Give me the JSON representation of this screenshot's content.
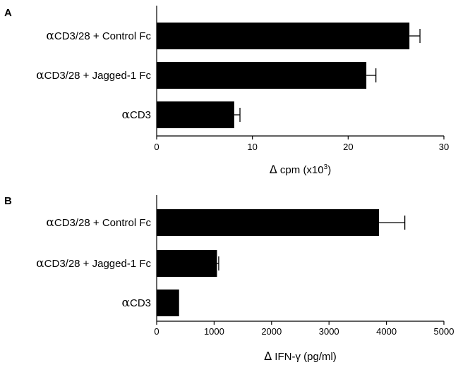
{
  "chart_data": [
    {
      "type": "bar",
      "orientation": "horizontal",
      "panel": "A",
      "categories": [
        {
          "prefix": "α",
          "text": "CD3/28 + Control Fc"
        },
        {
          "prefix": "α",
          "text": "CD3/28 + Jagged-1 Fc"
        },
        {
          "prefix": "α",
          "text": "CD3"
        }
      ],
      "values": [
        26.4,
        21.9,
        8.1
      ],
      "errors": [
        1.1,
        1.0,
        0.6
      ],
      "xlabel": {
        "symbol": "Δ",
        "text": " cpm (x10",
        "sup": "3",
        "suffix": ")"
      },
      "xlim": [
        0,
        30
      ],
      "xticks": [
        "0",
        "10",
        "20",
        "30"
      ],
      "bar_color": "#000000",
      "grid": false
    },
    {
      "type": "bar",
      "orientation": "horizontal",
      "panel": "B",
      "categories": [
        {
          "prefix": "α",
          "text": "CD3/28 + Control Fc"
        },
        {
          "prefix": "α",
          "text": "CD3/28 + Jagged-1 Fc"
        },
        {
          "prefix": "α",
          "text": "CD3"
        }
      ],
      "values": [
        3870,
        1050,
        390
      ],
      "errors": [
        450,
        30,
        0
      ],
      "xlabel": {
        "symbol": "Δ",
        "text": " IFN-γ (pg/ml)",
        "sup": "",
        "suffix": ""
      },
      "xlim": [
        0,
        5000
      ],
      "xticks": [
        "0",
        "1000",
        "2000",
        "3000",
        "4000",
        "5000"
      ],
      "bar_color": "#000000",
      "grid": false
    }
  ]
}
